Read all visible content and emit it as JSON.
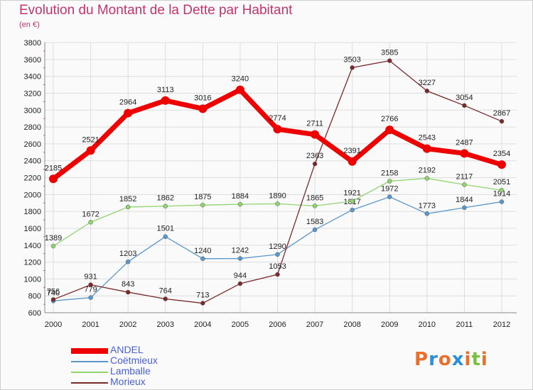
{
  "title": "Evolution du Montant de la Dette par Habitant",
  "unit": "(en €)",
  "logo": {
    "text": "Proxiti",
    "colors": [
      "#e8702a",
      "#2b8fd6",
      "#e8702a",
      "#2b8fd6",
      "#e8702a",
      "#7bc043",
      "#e8702a"
    ]
  },
  "chart_data": {
    "type": "line",
    "x": [
      "2000",
      "2001",
      "2002",
      "2003",
      "2004",
      "2005",
      "2006",
      "2007",
      "2008",
      "2009",
      "2010",
      "2011",
      "2012"
    ],
    "ylim": [
      600,
      3800
    ],
    "yticks": [
      600,
      800,
      1000,
      1200,
      1400,
      1600,
      1800,
      2000,
      2200,
      2400,
      2600,
      2800,
      3000,
      3200,
      3400,
      3600,
      3800
    ],
    "grid": true,
    "legend_position": "bottom-left",
    "series": [
      {
        "name": "ANDEL",
        "color": "#ee0000",
        "width": 7,
        "marker": 6,
        "values": [
          2185,
          2521,
          2964,
          3113,
          3016,
          3240,
          2774,
          2711,
          2391,
          2766,
          2543,
          2487,
          2354
        ]
      },
      {
        "name": "Coëtmieux",
        "color": "#5b97c9",
        "width": 1.3,
        "marker": 3,
        "values": [
          740,
          779,
          1203,
          1501,
          1240,
          1242,
          1290,
          1583,
          1817,
          1972,
          1773,
          1844,
          1914
        ]
      },
      {
        "name": "Lamballe",
        "color": "#8fd46d",
        "width": 1.3,
        "marker": 3,
        "values": [
          1389,
          1672,
          1852,
          1862,
          1875,
          1884,
          1890,
          1865,
          1921,
          2158,
          2192,
          2117,
          2051
        ]
      },
      {
        "name": "Morieux",
        "color": "#7a2a2a",
        "width": 1.3,
        "marker": 3,
        "values": [
          756,
          931,
          843,
          764,
          713,
          944,
          1053,
          2363,
          3503,
          3585,
          3227,
          3054,
          2867
        ]
      }
    ]
  }
}
